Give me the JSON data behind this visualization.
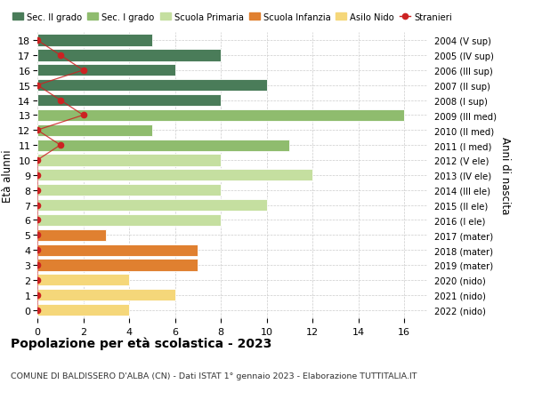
{
  "ages": [
    18,
    17,
    16,
    15,
    14,
    13,
    12,
    11,
    10,
    9,
    8,
    7,
    6,
    5,
    4,
    3,
    2,
    1,
    0
  ],
  "years": [
    "2004 (V sup)",
    "2005 (IV sup)",
    "2006 (III sup)",
    "2007 (II sup)",
    "2008 (I sup)",
    "2009 (III med)",
    "2010 (II med)",
    "2011 (I med)",
    "2012 (V ele)",
    "2013 (IV ele)",
    "2014 (III ele)",
    "2015 (II ele)",
    "2016 (I ele)",
    "2017 (mater)",
    "2018 (mater)",
    "2019 (mater)",
    "2020 (nido)",
    "2021 (nido)",
    "2022 (nido)"
  ],
  "values": [
    5,
    8,
    6,
    10,
    8,
    16,
    5,
    11,
    8,
    12,
    8,
    10,
    8,
    3,
    7,
    7,
    4,
    6,
    4
  ],
  "colors": [
    "#4a7c59",
    "#4a7c59",
    "#4a7c59",
    "#4a7c59",
    "#4a7c59",
    "#8fbc6e",
    "#8fbc6e",
    "#8fbc6e",
    "#c5dfa0",
    "#c5dfa0",
    "#c5dfa0",
    "#c5dfa0",
    "#c5dfa0",
    "#e08030",
    "#e08030",
    "#e08030",
    "#f5d77a",
    "#f5d77a",
    "#f5d77a"
  ],
  "stranieri_ages": [
    18,
    17,
    16,
    15,
    14,
    13,
    12,
    11,
    10,
    9,
    8,
    7,
    6,
    5,
    4,
    3,
    2,
    1,
    0
  ],
  "stranieri_values": [
    0,
    1,
    2,
    0,
    1,
    2,
    0,
    1,
    0,
    0,
    0,
    0,
    0,
    0,
    0,
    0,
    0,
    0,
    0
  ],
  "legend_labels": [
    "Sec. II grado",
    "Sec. I grado",
    "Scuola Primaria",
    "Scuola Infanzia",
    "Asilo Nido",
    "Stranieri"
  ],
  "legend_colors": [
    "#4a7c59",
    "#8fbc6e",
    "#c5dfa0",
    "#e08030",
    "#f5d77a",
    "#cc2222"
  ],
  "title": "Popolazione per età scolastica - 2023",
  "subtitle": "COMUNE DI BALDISSERO D'ALBA (CN) - Dati ISTAT 1° gennaio 2023 - Elaborazione TUTTITALIA.IT",
  "ylabel_left": "Età alunni",
  "ylabel_right": "Anni di nascita",
  "xlim": [
    0,
    17
  ],
  "xticks": [
    0,
    2,
    4,
    6,
    8,
    10,
    12,
    14,
    16
  ],
  "ylim": [
    -0.55,
    18.55
  ],
  "bg_color": "#ffffff",
  "grid_color": "#cccccc",
  "bar_height": 0.78
}
